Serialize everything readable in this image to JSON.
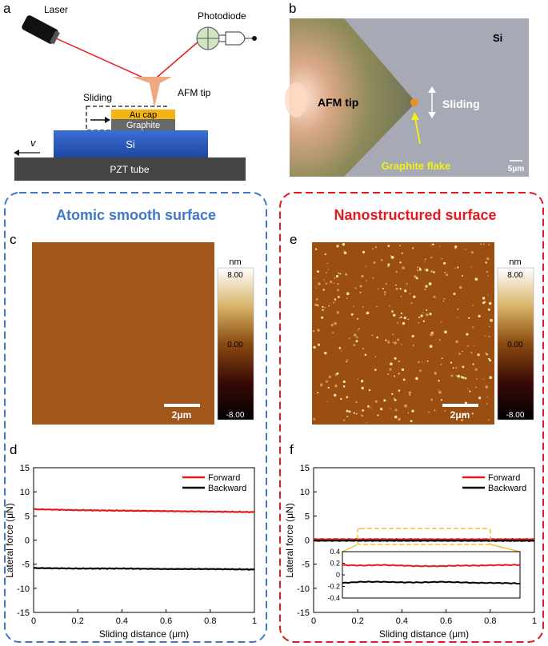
{
  "panel_letters": {
    "a": "a",
    "b": "b",
    "c": "c",
    "d": "d",
    "e": "e",
    "f": "f"
  },
  "schematic": {
    "laser": "Laser",
    "photodiode": "Photodiode",
    "afm_tip": "AFM tip",
    "sliding": "Sliding",
    "au_cap": "Au cap",
    "graphite": "Graphite",
    "si": "Si",
    "velocity": "v",
    "pzt": "PZT tube"
  },
  "micrograph": {
    "si": "Si",
    "afm_tip": "AFM tip",
    "sliding": "Sliding",
    "graphite_flake": "Graphite flake",
    "scale": "5μm"
  },
  "left_box": {
    "title": "Atomic smooth surface",
    "color": "#3f78c8"
  },
  "right_box": {
    "title": "Nanostructured surface",
    "color": "#e8191c"
  },
  "afm_maps": {
    "colorbar_unit": "nm",
    "colorbar_ticks": [
      "8.00",
      "0.00",
      "-8.00"
    ],
    "scale_bar": "2μm"
  },
  "chart_data": [
    {
      "type": "line",
      "panel": "d",
      "xlabel": "Sliding distance (μm)",
      "ylabel": "Lateral force (μN)",
      "xlim": [
        0,
        1
      ],
      "ylim": [
        -15,
        15
      ],
      "xticks": [
        "0",
        "0.2",
        "0.4",
        "0.6",
        "0.8",
        "1"
      ],
      "yticks": [
        "15",
        "10",
        "5",
        "0",
        "-5",
        "-10",
        "-15"
      ],
      "legend": "top-right",
      "series": [
        {
          "name": "Forward",
          "color": "#e8191c",
          "x": [
            0,
            0.2,
            0.4,
            0.6,
            0.8,
            1.0
          ],
          "y": [
            6.4,
            6.2,
            6.1,
            6.0,
            5.9,
            5.8
          ]
        },
        {
          "name": "Backward",
          "color": "#000000",
          "x": [
            0,
            0.2,
            0.4,
            0.6,
            0.8,
            1.0
          ],
          "y": [
            -5.8,
            -5.9,
            -5.9,
            -6.0,
            -6.0,
            -6.1
          ]
        }
      ]
    },
    {
      "type": "line",
      "panel": "f",
      "xlabel": "Sliding distance (μm)",
      "ylabel": "Lateral force (μN)",
      "xlim": [
        0,
        1
      ],
      "ylim": [
        -15,
        15
      ],
      "xticks": [
        "0",
        "0.2",
        "0.4",
        "0.6",
        "0.8",
        "1"
      ],
      "yticks": [
        "15",
        "10",
        "5",
        "0",
        "-5",
        "-10",
        "-15"
      ],
      "legend": "top-right",
      "series": [
        {
          "name": "Forward",
          "color": "#e8191c",
          "x": [
            0,
            0.2,
            0.4,
            0.6,
            0.8,
            1.0
          ],
          "y": [
            0.17,
            0.16,
            0.16,
            0.15,
            0.16,
            0.17
          ]
        },
        {
          "name": "Backward",
          "color": "#000000",
          "x": [
            0,
            0.2,
            0.4,
            0.6,
            0.8,
            1.0
          ],
          "y": [
            -0.13,
            -0.12,
            -0.13,
            -0.13,
            -0.14,
            -0.14
          ]
        }
      ],
      "inset": {
        "xlim": [
          0.2,
          0.8
        ],
        "ylim": [
          -0.4,
          0.4
        ],
        "yticks": [
          "0.4",
          "0.2",
          "0",
          "-0.2",
          "-0.4"
        ],
        "forward_y": [
          0.17,
          0.16,
          0.17,
          0.16,
          0.15,
          0.15,
          0.16,
          0.16,
          0.17,
          0.17
        ],
        "backward_y": [
          -0.14,
          -0.12,
          -0.12,
          -0.13,
          -0.13,
          -0.12,
          -0.13,
          -0.14,
          -0.14,
          -0.15
        ]
      }
    }
  ]
}
